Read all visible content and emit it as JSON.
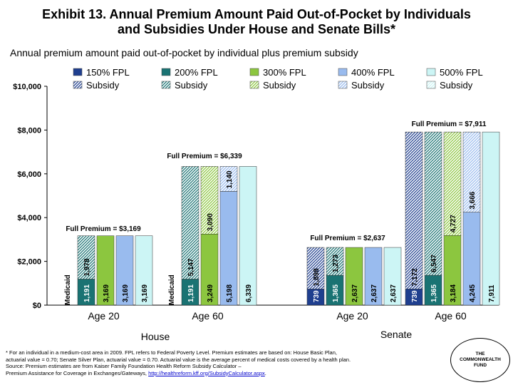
{
  "title_line1": "Exhibit 13. Annual Premium Amount Paid Out-of-Pocket by Individuals",
  "title_line2": "and Subsidies Under House and Senate Bills*",
  "subtitle": "Annual premium amount paid out-of-pocket by individual plus premium subsidy",
  "footnote": {
    "line1": "* For an individual in a medium-cost area in 2009. FPL refers to Federal Poverty Level. Premium estimates are based on: House Basic Plan,",
    "line2": "actuarial value = 0.70; Senate Silver Plan, actuarial value = 0.70. Actuarial value is the average percent of medical costs covered by a health plan.",
    "line3": "Source: Premium estimates are from Kaiser Family Foundation Health Reform Subsidy Calculator –",
    "line4": "Premium Assistance for Coverage in Exchanges/Gateways, ",
    "link": "http://healthreform.kff.org/SubsidyCalculator.aspx",
    "line4_end": "."
  },
  "logo": {
    "line1": "THE",
    "line2": "COMMONWEALTH",
    "line3": "FUND"
  },
  "chart_data": {
    "type": "bar",
    "stacked": true,
    "ylim": [
      0,
      10000
    ],
    "yticks": [
      {
        "value": 0,
        "label": "$0"
      },
      {
        "value": 2000,
        "label": "$2,000"
      },
      {
        "value": 4000,
        "label": "$4,000"
      },
      {
        "value": 6000,
        "label": "$6,000"
      },
      {
        "value": 8000,
        "label": "$8,000"
      },
      {
        "value": 10000,
        "label": "$10,000"
      }
    ],
    "legend_position": "top",
    "legend": [
      {
        "name": "150% FPL",
        "subsidy": "Subsidy",
        "color": "#1f3f8f"
      },
      {
        "name": "200% FPL",
        "subsidy": "Subsidy",
        "color": "#1a7373"
      },
      {
        "name": "300% FPL",
        "subsidy": "Subsidy",
        "color": "#8cc63f"
      },
      {
        "name": "400% FPL",
        "subsidy": "Subsidy",
        "color": "#99bbee"
      },
      {
        "name": "500% FPL",
        "subsidy": "Subsidy",
        "color": "#ccf5f5"
      }
    ],
    "bill_labels": [
      "House",
      "Senate"
    ],
    "groups": [
      {
        "age": "Age 20",
        "full_premium_label": "Full Premium = $3,169",
        "bars": [
          {
            "medicaid": true,
            "medicaid_label": "Medicaid"
          },
          {
            "level": 1,
            "paid": 1191,
            "paid_label": "1,191",
            "subsidy": 1978,
            "subsidy_label": "1,978"
          },
          {
            "level": 2,
            "paid": 3169,
            "paid_label": "3,169",
            "subsidy": 0,
            "subsidy_label": ""
          },
          {
            "level": 3,
            "paid": 3169,
            "paid_label": "3,169",
            "subsidy": 0,
            "subsidy_label": ""
          },
          {
            "level": 4,
            "paid": 3169,
            "paid_label": "3,169",
            "subsidy": 0,
            "subsidy_label": ""
          }
        ]
      },
      {
        "age": "Age 60",
        "full_premium_label": "Full Premium = $6,339",
        "bars": [
          {
            "medicaid": true,
            "medicaid_label": "Medicaid"
          },
          {
            "level": 1,
            "paid": 1191,
            "paid_label": "1,191",
            "subsidy": 5147,
            "subsidy_label": "5,147"
          },
          {
            "level": 2,
            "paid": 3249,
            "paid_label": "3,249",
            "subsidy": 3090,
            "subsidy_label": "3,090"
          },
          {
            "level": 3,
            "paid": 5198,
            "paid_label": "5,198",
            "subsidy": 1140,
            "subsidy_label": "1,140"
          },
          {
            "level": 4,
            "paid": 6339,
            "paid_label": "6,339",
            "subsidy": 0,
            "subsidy_label": ""
          }
        ]
      },
      {
        "age": "Age 20",
        "full_premium_label": "Full Premium = $2,637",
        "bars": [
          {
            "level": 0,
            "paid": 739,
            "paid_label": "739",
            "subsidy": 1898,
            "subsidy_label": "1,898"
          },
          {
            "level": 1,
            "paid": 1365,
            "paid_label": "1,365",
            "subsidy": 1273,
            "subsidy_label": "1,273"
          },
          {
            "level": 2,
            "paid": 2637,
            "paid_label": "2,637",
            "subsidy": 0,
            "subsidy_label": ""
          },
          {
            "level": 3,
            "paid": 2637,
            "paid_label": "2,637",
            "subsidy": 0,
            "subsidy_label": ""
          },
          {
            "level": 4,
            "paid": 2637,
            "paid_label": "2,637",
            "subsidy": 0,
            "subsidy_label": ""
          }
        ]
      },
      {
        "age": "Age 60",
        "full_premium_label": "Full Premium = $7,911",
        "bars": [
          {
            "level": 0,
            "paid": 739,
            "paid_label": "739",
            "subsidy": 7172,
            "subsidy_label": "7,172"
          },
          {
            "level": 1,
            "paid": 1365,
            "paid_label": "1,365",
            "subsidy": 6547,
            "subsidy_label": "6,547"
          },
          {
            "level": 2,
            "paid": 3184,
            "paid_label": "3,184",
            "subsidy": 4727,
            "subsidy_label": "4,727"
          },
          {
            "level": 3,
            "paid": 4245,
            "paid_label": "4,245",
            "subsidy": 3666,
            "subsidy_label": "3,666"
          },
          {
            "level": 4,
            "paid": 7911,
            "paid_label": "7,911",
            "subsidy": 0,
            "subsidy_label": ""
          }
        ]
      }
    ]
  }
}
